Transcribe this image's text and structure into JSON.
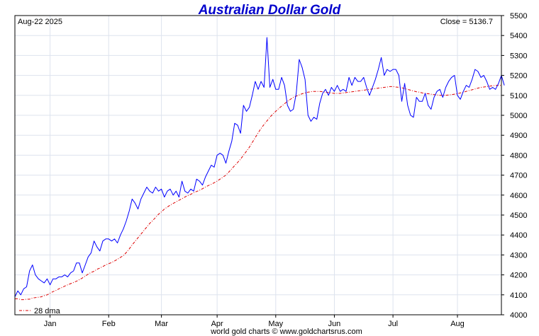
{
  "chart_data": {
    "type": "line",
    "title": "Australian Dollar Gold",
    "date_label": "Aug-22  2025",
    "close_label": "Close = 5136.7",
    "footer": "world gold charts © www.goldchartsrus.com",
    "legend": [
      {
        "label": "28 dma",
        "placement": "bottom-left"
      }
    ],
    "ylim": [
      4000,
      5500
    ],
    "yticks": [
      4000,
      4100,
      4200,
      4300,
      4400,
      4500,
      4600,
      4700,
      4800,
      4900,
      5000,
      5100,
      5200,
      5300,
      5400,
      5500
    ],
    "xlim": [
      0,
      166
    ],
    "xticks": [
      {
        "label": "Jan",
        "x": 12
      },
      {
        "label": "Feb",
        "x": 32
      },
      {
        "label": "Mar",
        "x": 50
      },
      {
        "label": "Apr",
        "x": 69
      },
      {
        "label": "May",
        "x": 89
      },
      {
        "label": "Jun",
        "x": 109
      },
      {
        "label": "Jul",
        "x": 129
      },
      {
        "label": "Aug",
        "x": 151
      }
    ],
    "grid": true,
    "colors": {
      "price": "#0000ff",
      "dma": "#dd0000",
      "grid": "#dde3ee",
      "title": "#0000cc"
    },
    "series": [
      {
        "name": "Price",
        "style": "solid",
        "values": [
          4090,
          4120,
          4100,
          4130,
          4140,
          4220,
          4250,
          4200,
          4180,
          4170,
          4160,
          4180,
          4150,
          4180,
          4180,
          4190,
          4190,
          4200,
          4190,
          4210,
          4220,
          4260,
          4260,
          4210,
          4250,
          4290,
          4310,
          4370,
          4340,
          4320,
          4370,
          4380,
          4380,
          4370,
          4380,
          4360,
          4400,
          4430,
          4470,
          4520,
          4580,
          4560,
          4530,
          4580,
          4610,
          4640,
          4620,
          4610,
          4640,
          4620,
          4630,
          4590,
          4620,
          4630,
          4600,
          4620,
          4590,
          4670,
          4620,
          4610,
          4630,
          4620,
          4680,
          4670,
          4650,
          4690,
          4720,
          4750,
          4740,
          4800,
          4810,
          4800,
          4760,
          4820,
          4870,
          4960,
          4950,
          4910,
          5050,
          5020,
          5040,
          5100,
          5170,
          5130,
          5170,
          5140,
          5390,
          5140,
          5180,
          5130,
          5130,
          5190,
          5150,
          5050,
          5020,
          5030,
          5110,
          5280,
          5240,
          5180,
          5000,
          4970,
          4990,
          4980,
          5060,
          5110,
          5130,
          5100,
          5140,
          5120,
          5150,
          5120,
          5130,
          5120,
          5190,
          5150,
          5190,
          5170,
          5170,
          5190,
          5140,
          5100,
          5140,
          5180,
          5230,
          5290,
          5200,
          5230,
          5220,
          5230,
          5230,
          5200,
          5070,
          5160,
          5050,
          5000,
          4990,
          5090,
          5070,
          5070,
          5110,
          5050,
          5030,
          5090,
          5120,
          5130,
          5090,
          5140,
          5170,
          5190,
          5200,
          5100,
          5080,
          5120,
          5150,
          5140,
          5180,
          5230,
          5220,
          5190,
          5200,
          5170,
          5130,
          5140,
          5130,
          5160,
          5200,
          5150
        ]
      },
      {
        "name": "28 dma",
        "style": "dash-dot",
        "values": [
          4080,
          4080,
          4076,
          4076,
          4078,
          4078,
          4084,
          4086,
          4088,
          4090,
          4096,
          4100,
          4108,
          4116,
          4122,
          4130,
          4136,
          4144,
          4150,
          4156,
          4162,
          4168,
          4176,
          4184,
          4194,
          4204,
          4212,
          4218,
          4228,
          4234,
          4242,
          4250,
          4256,
          4262,
          4270,
          4278,
          4288,
          4296,
          4312,
          4330,
          4350,
          4368,
          4386,
          4404,
          4422,
          4440,
          4458,
          4472,
          4488,
          4504,
          4516,
          4530,
          4540,
          4550,
          4558,
          4566,
          4574,
          4582,
          4590,
          4598,
          4604,
          4612,
          4618,
          4624,
          4632,
          4640,
          4648,
          4654,
          4662,
          4670,
          4680,
          4690,
          4700,
          4716,
          4732,
          4748,
          4764,
          4780,
          4800,
          4820,
          4840,
          4864,
          4888,
          4912,
          4934,
          4954,
          4972,
          4990,
          5006,
          5020,
          5034,
          5046,
          5058,
          5070,
          5080,
          5090,
          5096,
          5102,
          5108,
          5112,
          5116,
          5118,
          5120,
          5120,
          5120,
          5118,
          5116,
          5114,
          5112,
          5110,
          5110,
          5110,
          5112,
          5114,
          5116,
          5118,
          5120,
          5122,
          5124,
          5126,
          5128,
          5130,
          5132,
          5134,
          5136,
          5138,
          5140,
          5142,
          5144,
          5144,
          5142,
          5140,
          5138,
          5134,
          5130,
          5126,
          5122,
          5118,
          5116,
          5112,
          5110,
          5108,
          5106,
          5104,
          5102,
          5100,
          5100,
          5100,
          5102,
          5104,
          5106,
          5108,
          5112,
          5116,
          5120,
          5124,
          5128,
          5132,
          5136,
          5140,
          5142,
          5144,
          5146,
          5148,
          5150,
          5150,
          5150
        ]
      }
    ]
  }
}
